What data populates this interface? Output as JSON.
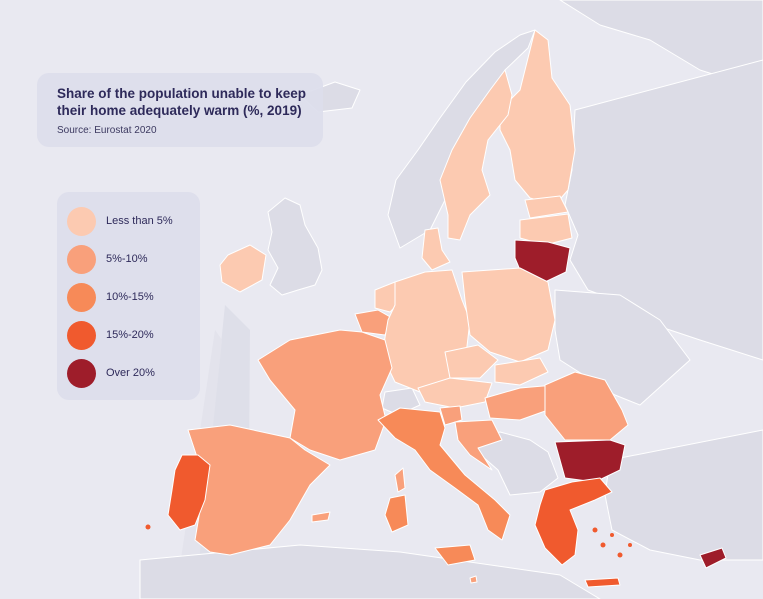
{
  "title": {
    "line1": "Share of the population unable to keep",
    "line2": "their home adequately warm (%, 2019)",
    "source": "Source: Eurostat 2020"
  },
  "legend": [
    {
      "label": "Less than 5%",
      "color": "#fccab1"
    },
    {
      "label": "5%-10%",
      "color": "#f9a07b"
    },
    {
      "label": "10%-15%",
      "color": "#f78a58"
    },
    {
      "label": "15%-20%",
      "color": "#f05a2e"
    },
    {
      "label": "Over 20%",
      "color": "#9e1d2a"
    }
  ],
  "colors": {
    "background": "#e9e9f1",
    "non_eu_land": "#dcdce6",
    "border": "#ffffff"
  }
}
